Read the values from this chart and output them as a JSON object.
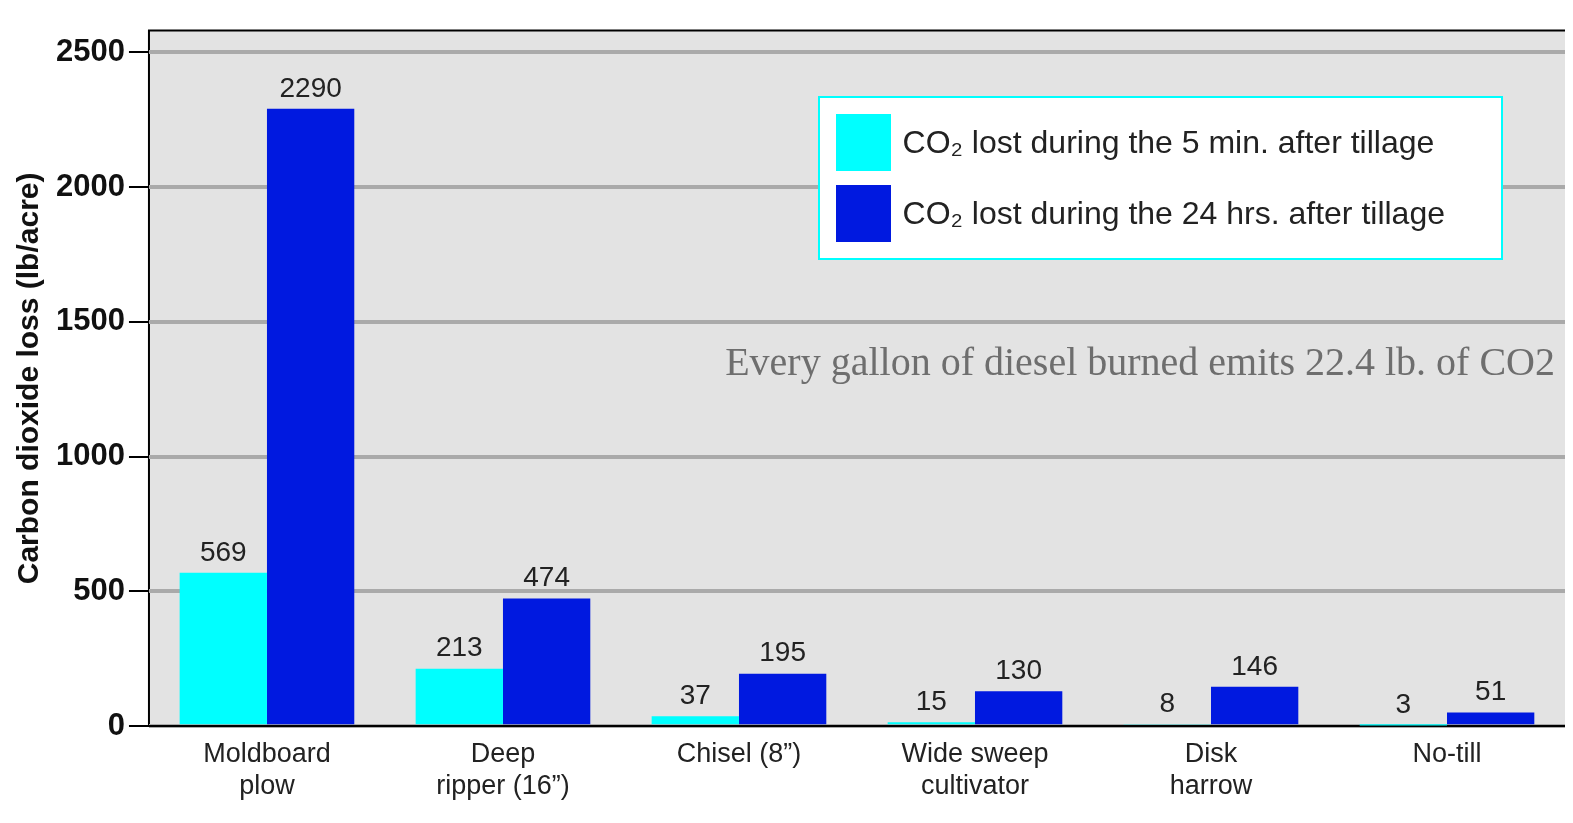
{
  "chart_data": {
    "type": "bar",
    "ylabel": "Carbon dioxide loss (lb/acre)",
    "categories": [
      "Moldboard\nplow",
      "Deep\nripper (16”)",
      "Chisel (8”)",
      "Wide sweep\ncultivator",
      "Disk\nharrow",
      "No-till"
    ],
    "series": [
      {
        "name": "CO₂ lost during the 5 min. after tillage",
        "color": "#00ffff",
        "values": [
          569,
          213,
          37,
          15,
          8,
          3
        ]
      },
      {
        "name": "CO₂ lost during the 24 hrs. after tillage",
        "color": "#0019e0",
        "values": [
          2290,
          474,
          195,
          130,
          146,
          51
        ]
      }
    ],
    "ylim": [
      0,
      2580
    ],
    "yticks": [
      0,
      500,
      1000,
      1500,
      2000,
      2500
    ],
    "grid": "y",
    "legend": "top right",
    "data_labels": true,
    "annotations": [
      "Every gallon of diesel burned emits 22.4 lb. of CO2"
    ]
  }
}
